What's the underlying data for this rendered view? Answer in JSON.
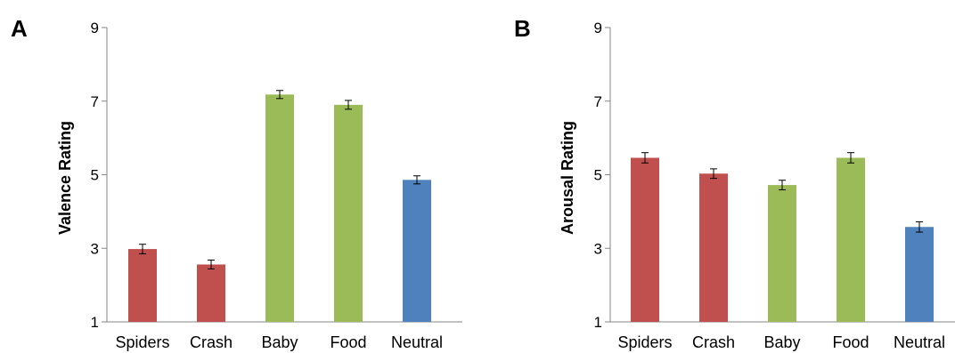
{
  "chart_data": [
    {
      "type": "bar",
      "panel_label": "A",
      "categories": [
        "Spiders",
        "Crash",
        "Baby",
        "Food",
        "Neutral"
      ],
      "values": [
        2.98,
        2.56,
        7.18,
        6.9,
        4.86
      ],
      "errors": [
        0.13,
        0.12,
        0.11,
        0.12,
        0.11
      ],
      "bar_colors": [
        "#c0504d",
        "#c0504d",
        "#9bbb59",
        "#9bbb59",
        "#4f81bd"
      ],
      "ylabel": "Valence Rating",
      "xlabel": "",
      "ylim": [
        1,
        9
      ],
      "yticks": [
        "1",
        "3",
        "5",
        "7",
        "9"
      ],
      "grid": false
    },
    {
      "type": "bar",
      "panel_label": "B",
      "categories": [
        "Spiders",
        "Crash",
        "Baby",
        "Food",
        "Neutral"
      ],
      "values": [
        5.46,
        5.03,
        4.72,
        5.46,
        3.58
      ],
      "errors": [
        0.14,
        0.13,
        0.13,
        0.14,
        0.14
      ],
      "bar_colors": [
        "#c0504d",
        "#c0504d",
        "#9bbb59",
        "#9bbb59",
        "#4f81bd"
      ],
      "ylabel": "Arousal Rating",
      "xlabel": "",
      "ylim": [
        1,
        9
      ],
      "yticks": [
        "1",
        "3",
        "5",
        "7",
        "9"
      ],
      "grid": false
    }
  ]
}
